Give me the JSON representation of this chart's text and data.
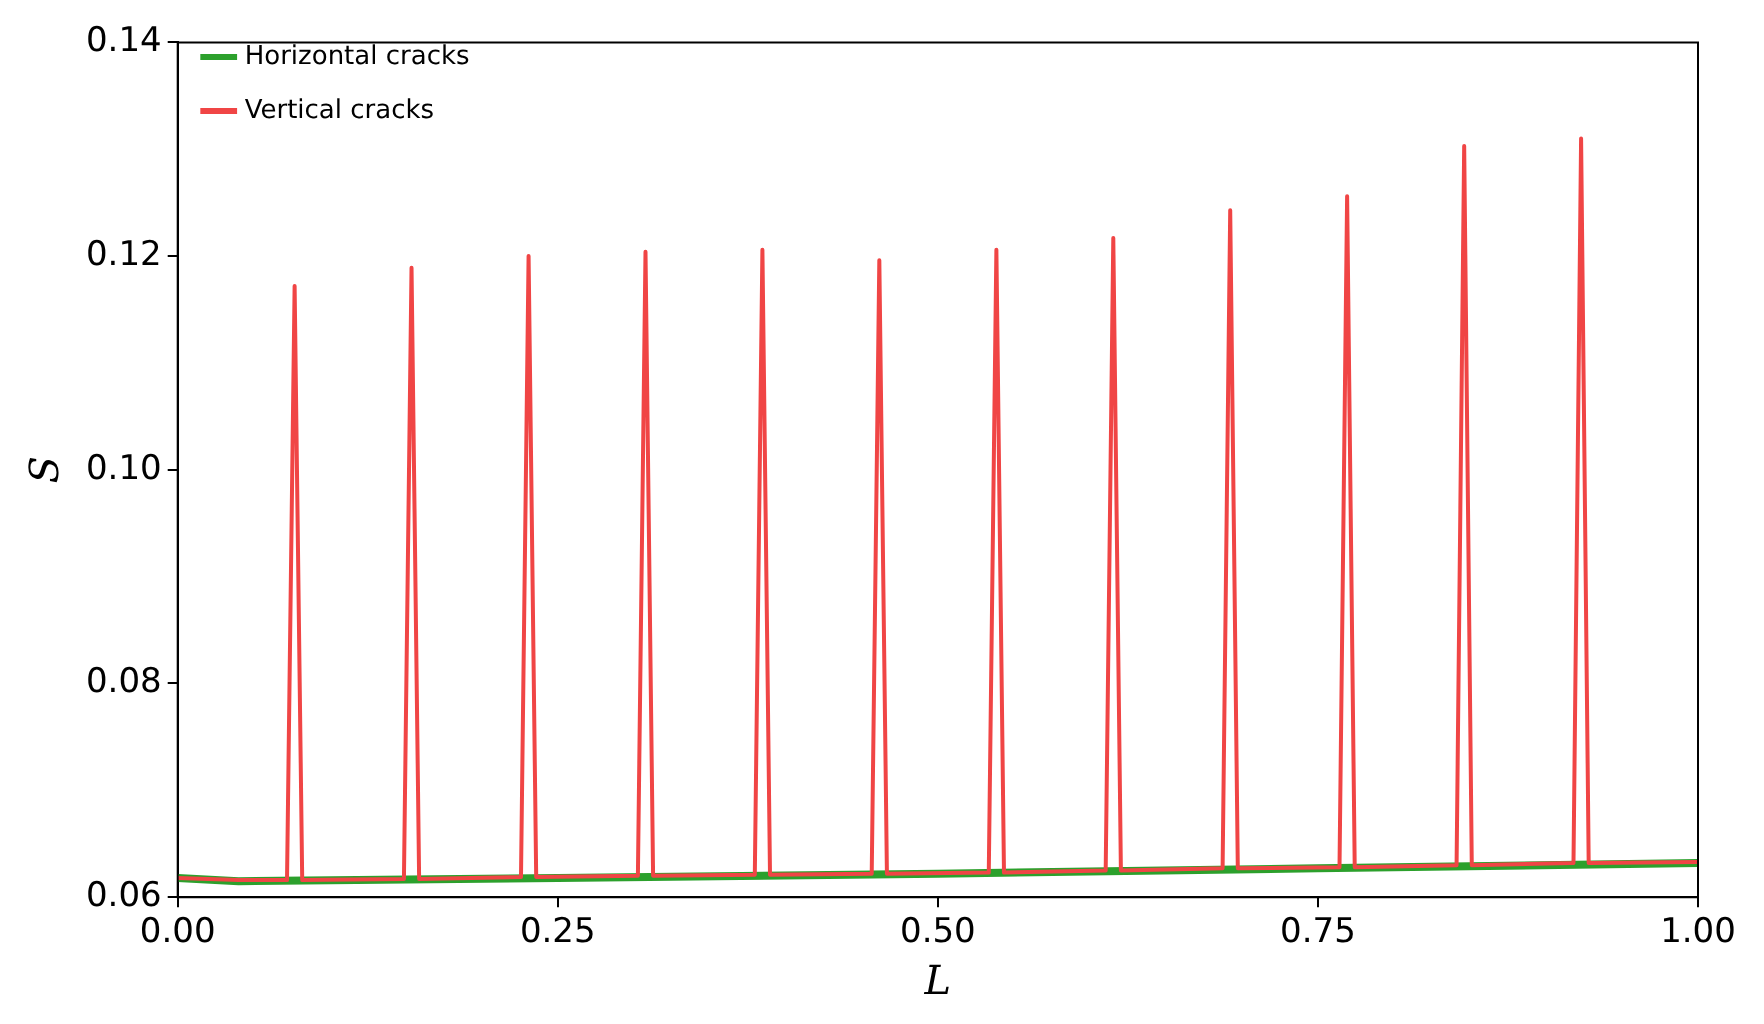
{
  "chart_data": {
    "type": "line",
    "xlabel": "L",
    "ylabel": "S",
    "xlim": [
      0,
      1
    ],
    "ylim": [
      0.06,
      0.14
    ],
    "xticks": [
      {
        "value": 0,
        "label": "0.00"
      },
      {
        "value": 0.25,
        "label": "0.25"
      },
      {
        "value": 0.5,
        "label": "0.50"
      },
      {
        "value": 0.75,
        "label": "0.75"
      },
      {
        "value": 1,
        "label": "1.00"
      }
    ],
    "yticks": [
      {
        "value": 0.06,
        "label": "0.06"
      },
      {
        "value": 0.08,
        "label": "0.08"
      },
      {
        "value": 0.1,
        "label": "0.10"
      },
      {
        "value": 0.12,
        "label": "0.12"
      },
      {
        "value": 0.14,
        "label": "0.14"
      }
    ],
    "grid": false,
    "legend": "top left",
    "marker": "none",
    "line_style": "solid",
    "series": [
      {
        "name": "Horizontal cracks",
        "color": "#2ca02c",
        "x": [
          0,
          0.04,
          0.25,
          0.5,
          0.75,
          1
        ],
        "values": [
          0.0618,
          0.0615,
          0.0618,
          0.0622,
          0.0627,
          0.0632
        ]
      },
      {
        "name": "Vertical cracks",
        "color": "#f04545",
        "x": [
          0,
          0.04,
          0.0719,
          0.0769,
          0.0819,
          0.1488,
          0.1538,
          0.1588,
          0.2258,
          0.2308,
          0.2358,
          0.3027,
          0.3077,
          0.3127,
          0.3796,
          0.3846,
          0.3896,
          0.4565,
          0.4615,
          0.4665,
          0.5335,
          0.5385,
          0.5435,
          0.6104,
          0.6154,
          0.6204,
          0.6873,
          0.6923,
          0.6973,
          0.7642,
          0.7692,
          0.7742,
          0.8412,
          0.8462,
          0.8512,
          0.9181,
          0.9231,
          0.9281,
          1
        ],
        "values": [
          0.0618,
          0.0616,
          0.0616,
          0.1172,
          0.0616,
          0.0617,
          0.1189,
          0.0617,
          0.0619,
          0.12,
          0.0619,
          0.062,
          0.1204,
          0.062,
          0.0621,
          0.1206,
          0.0621,
          0.0622,
          0.1196,
          0.0622,
          0.0623,
          0.1206,
          0.0623,
          0.0625,
          0.1217,
          0.0625,
          0.0627,
          0.1243,
          0.0627,
          0.0628,
          0.1256,
          0.0628,
          0.063,
          0.1303,
          0.063,
          0.0632,
          0.131,
          0.0632,
          0.0633
        ]
      }
    ]
  }
}
